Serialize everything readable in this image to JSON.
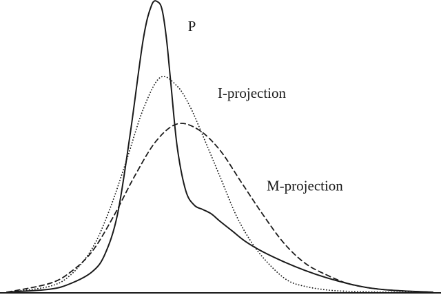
{
  "colors": {
    "line": "#1a1a1a",
    "background": "#ffffff"
  },
  "chart_data": {
    "type": "line",
    "title": "",
    "xlabel": "",
    "ylabel": "",
    "xlim": [
      0,
      10
    ],
    "ylim": [
      0,
      1.0
    ],
    "grid": false,
    "legend": "none",
    "axes": {
      "x_baseline": true,
      "y_axis": false
    },
    "series": [
      {
        "name": "P",
        "style": "solid",
        "x": [
          0.0,
          1.0,
          1.5,
          2.0,
          2.3,
          2.6,
          2.9,
          3.2,
          3.4,
          3.55,
          3.65,
          3.75,
          3.85,
          4.0,
          4.2,
          4.4,
          4.6,
          4.8,
          5.0,
          5.3,
          5.6,
          6.0,
          6.5,
          7.0,
          7.5,
          8.0,
          8.5,
          9.0,
          9.5,
          10.0
        ],
        "y": [
          0.0,
          0.01,
          0.03,
          0.07,
          0.13,
          0.27,
          0.55,
          0.87,
          0.99,
          1.0,
          0.97,
          0.87,
          0.72,
          0.5,
          0.35,
          0.3,
          0.285,
          0.27,
          0.245,
          0.21,
          0.175,
          0.14,
          0.105,
          0.075,
          0.05,
          0.03,
          0.015,
          0.007,
          0.003,
          0.0
        ]
      },
      {
        "name": "I-projection",
        "style": "dotted",
        "x": [
          0.0,
          1.0,
          1.5,
          2.0,
          2.4,
          2.8,
          3.2,
          3.6,
          4.0,
          4.3,
          4.6,
          5.0,
          5.4,
          5.8,
          6.2,
          6.6,
          7.0,
          7.5,
          8.0,
          8.5,
          9.0,
          10.0
        ],
        "y": [
          0.0,
          0.02,
          0.06,
          0.15,
          0.28,
          0.45,
          0.63,
          0.74,
          0.71,
          0.64,
          0.54,
          0.4,
          0.26,
          0.16,
          0.09,
          0.04,
          0.02,
          0.008,
          0.003,
          0.001,
          0.0,
          0.0
        ]
      },
      {
        "name": "M-projection",
        "style": "dashed",
        "x": [
          0.0,
          1.0,
          1.5,
          2.0,
          2.5,
          3.0,
          3.5,
          4.0,
          4.5,
          5.0,
          5.5,
          6.0,
          6.5,
          7.0,
          7.5,
          8.0,
          8.5,
          9.0,
          9.5,
          10.0
        ],
        "y": [
          0.0,
          0.03,
          0.07,
          0.14,
          0.26,
          0.4,
          0.52,
          0.58,
          0.56,
          0.49,
          0.38,
          0.27,
          0.17,
          0.1,
          0.06,
          0.03,
          0.015,
          0.007,
          0.003,
          0.0
        ]
      }
    ],
    "labels": [
      {
        "text": "P",
        "x": 4.25,
        "y": 0.9
      },
      {
        "text": "I-projection",
        "x": 4.95,
        "y": 0.67
      },
      {
        "text": "M-projection",
        "x": 6.1,
        "y": 0.35
      }
    ]
  }
}
